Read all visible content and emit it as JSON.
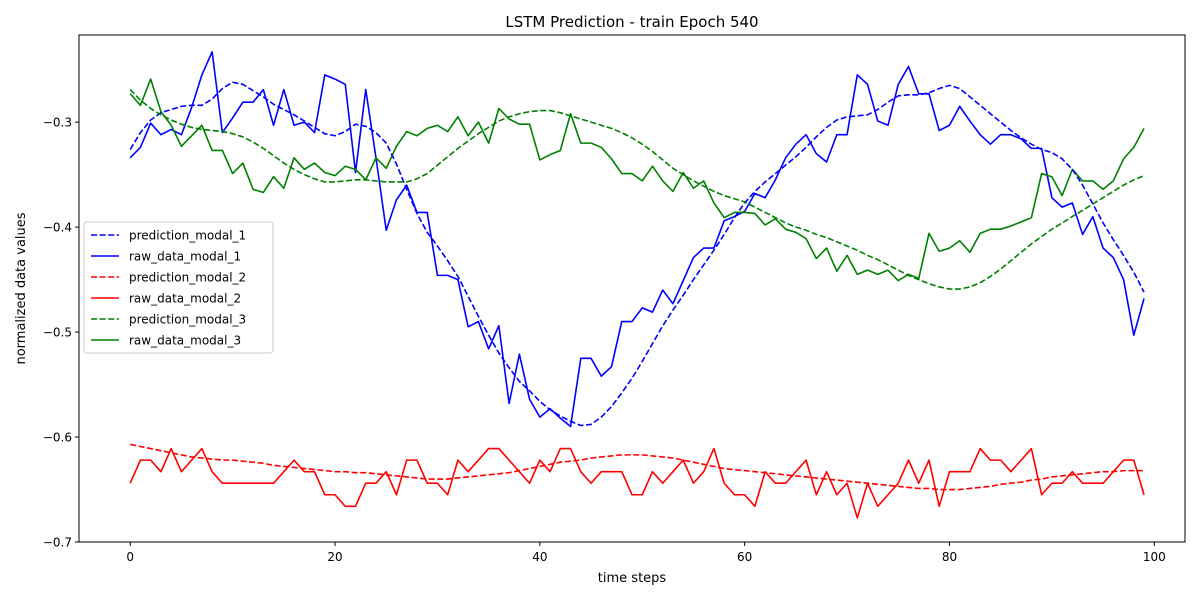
{
  "chart_data": {
    "type": "line",
    "title": "LSTM Prediction - train Epoch 540",
    "xlabel": "time steps",
    "ylabel": "normalized data values",
    "xlim": [
      -5,
      103
    ],
    "ylim": [
      -0.7,
      -0.217
    ],
    "xticks": [
      0,
      20,
      40,
      60,
      80,
      100
    ],
    "yticks": [
      -0.7,
      -0.6,
      -0.5,
      -0.4,
      -0.3
    ],
    "xtick_labels": [
      "0",
      "20",
      "40",
      "60",
      "80",
      "100"
    ],
    "ytick_labels": [
      "−0.7",
      "−0.6",
      "−0.5",
      "−0.4",
      "−0.3"
    ],
    "grid": false,
    "legend_position": "center-left",
    "series": [
      {
        "name": "prediction_modal_1",
        "color": "#0000ff",
        "dashed": true,
        "values": [
          -0.326,
          -0.31,
          -0.298,
          -0.291,
          -0.288,
          -0.285,
          -0.284,
          -0.284,
          -0.278,
          -0.268,
          -0.262,
          -0.264,
          -0.27,
          -0.276,
          -0.283,
          -0.288,
          -0.293,
          -0.299,
          -0.305,
          -0.311,
          -0.313,
          -0.309,
          -0.302,
          -0.304,
          -0.31,
          -0.32,
          -0.34,
          -0.364,
          -0.387,
          -0.405,
          -0.418,
          -0.432,
          -0.447,
          -0.466,
          -0.485,
          -0.503,
          -0.52,
          -0.534,
          -0.547,
          -0.556,
          -0.566,
          -0.574,
          -0.58,
          -0.585,
          -0.589,
          -0.588,
          -0.581,
          -0.571,
          -0.558,
          -0.544,
          -0.528,
          -0.511,
          -0.494,
          -0.479,
          -0.465,
          -0.45,
          -0.436,
          -0.422,
          -0.407,
          -0.391,
          -0.377,
          -0.366,
          -0.357,
          -0.349,
          -0.341,
          -0.333,
          -0.324,
          -0.314,
          -0.305,
          -0.298,
          -0.295,
          -0.294,
          -0.293,
          -0.288,
          -0.281,
          -0.275,
          -0.274,
          -0.274,
          -0.272,
          -0.268,
          -0.265,
          -0.268,
          -0.276,
          -0.284,
          -0.292,
          -0.3,
          -0.308,
          -0.315,
          -0.321,
          -0.326,
          -0.329,
          -0.335,
          -0.345,
          -0.36,
          -0.378,
          -0.396,
          -0.412,
          -0.427,
          -0.443,
          -0.462
        ]
      },
      {
        "name": "raw_data_modal_1",
        "color": "#0000ff",
        "dashed": false,
        "values": [
          -0.334,
          -0.324,
          -0.301,
          -0.312,
          -0.307,
          -0.312,
          -0.286,
          -0.255,
          -0.233,
          -0.31,
          -0.296,
          -0.281,
          -0.281,
          -0.269,
          -0.303,
          -0.269,
          -0.303,
          -0.3,
          -0.31,
          -0.255,
          -0.259,
          -0.264,
          -0.348,
          -0.269,
          -0.334,
          -0.403,
          -0.374,
          -0.36,
          -0.386,
          -0.386,
          -0.446,
          -0.446,
          -0.45,
          -0.495,
          -0.49,
          -0.516,
          -0.494,
          -0.568,
          -0.521,
          -0.564,
          -0.581,
          -0.573,
          -0.582,
          -0.59,
          -0.525,
          -0.525,
          -0.542,
          -0.533,
          -0.49,
          -0.49,
          -0.477,
          -0.481,
          -0.46,
          -0.473,
          -0.451,
          -0.429,
          -0.42,
          -0.42,
          -0.394,
          -0.39,
          -0.385,
          -0.368,
          -0.372,
          -0.355,
          -0.334,
          -0.321,
          -0.312,
          -0.33,
          -0.338,
          -0.312,
          -0.312,
          -0.255,
          -0.264,
          -0.299,
          -0.303,
          -0.264,
          -0.247,
          -0.273,
          -0.273,
          -0.308,
          -0.303,
          -0.285,
          -0.299,
          -0.312,
          -0.321,
          -0.312,
          -0.312,
          -0.316,
          -0.325,
          -0.325,
          -0.372,
          -0.381,
          -0.377,
          -0.407,
          -0.39,
          -0.42,
          -0.429,
          -0.45,
          -0.503,
          -0.468
        ]
      },
      {
        "name": "prediction_modal_2",
        "color": "#ff0000",
        "dashed": true,
        "values": [
          -0.607,
          -0.609,
          -0.611,
          -0.613,
          -0.615,
          -0.617,
          -0.619,
          -0.62,
          -0.621,
          -0.622,
          -0.622,
          -0.623,
          -0.624,
          -0.625,
          -0.627,
          -0.628,
          -0.629,
          -0.63,
          -0.631,
          -0.632,
          -0.633,
          -0.633,
          -0.634,
          -0.634,
          -0.635,
          -0.636,
          -0.637,
          -0.638,
          -0.639,
          -0.64,
          -0.64,
          -0.64,
          -0.639,
          -0.638,
          -0.637,
          -0.636,
          -0.635,
          -0.634,
          -0.632,
          -0.63,
          -0.628,
          -0.626,
          -0.624,
          -0.623,
          -0.622,
          -0.62,
          -0.619,
          -0.618,
          -0.617,
          -0.617,
          -0.617,
          -0.618,
          -0.619,
          -0.62,
          -0.622,
          -0.624,
          -0.626,
          -0.628,
          -0.63,
          -0.631,
          -0.632,
          -0.633,
          -0.634,
          -0.635,
          -0.636,
          -0.637,
          -0.638,
          -0.639,
          -0.64,
          -0.641,
          -0.642,
          -0.643,
          -0.644,
          -0.645,
          -0.646,
          -0.647,
          -0.648,
          -0.649,
          -0.649,
          -0.65,
          -0.65,
          -0.65,
          -0.649,
          -0.648,
          -0.647,
          -0.645,
          -0.644,
          -0.643,
          -0.641,
          -0.64,
          -0.638,
          -0.637,
          -0.636,
          -0.635,
          -0.634,
          -0.633,
          -0.633,
          -0.632,
          -0.632,
          -0.632
        ]
      },
      {
        "name": "raw_data_modal_2",
        "color": "#ff0000",
        "dashed": false,
        "values": [
          -0.644,
          -0.622,
          -0.622,
          -0.633,
          -0.611,
          -0.633,
          -0.622,
          -0.611,
          -0.633,
          -0.644,
          -0.644,
          -0.644,
          -0.644,
          -0.644,
          -0.644,
          -0.633,
          -0.622,
          -0.633,
          -0.633,
          -0.655,
          -0.655,
          -0.666,
          -0.666,
          -0.644,
          -0.644,
          -0.633,
          -0.655,
          -0.622,
          -0.622,
          -0.644,
          -0.644,
          -0.655,
          -0.622,
          -0.633,
          -0.622,
          -0.611,
          -0.611,
          -0.622,
          -0.633,
          -0.644,
          -0.622,
          -0.633,
          -0.611,
          -0.611,
          -0.633,
          -0.644,
          -0.633,
          -0.633,
          -0.633,
          -0.655,
          -0.655,
          -0.633,
          -0.644,
          -0.633,
          -0.622,
          -0.644,
          -0.633,
          -0.611,
          -0.644,
          -0.655,
          -0.655,
          -0.666,
          -0.633,
          -0.644,
          -0.644,
          -0.633,
          -0.622,
          -0.655,
          -0.633,
          -0.655,
          -0.644,
          -0.677,
          -0.644,
          -0.666,
          -0.655,
          -0.644,
          -0.622,
          -0.644,
          -0.622,
          -0.666,
          -0.633,
          -0.633,
          -0.633,
          -0.611,
          -0.622,
          -0.622,
          -0.633,
          -0.622,
          -0.611,
          -0.655,
          -0.644,
          -0.644,
          -0.633,
          -0.644,
          -0.644,
          -0.644,
          -0.633,
          -0.622,
          -0.622,
          -0.655
        ]
      },
      {
        "name": "prediction_modal_3",
        "color": "#008000",
        "dashed": true,
        "values": [
          -0.269,
          -0.279,
          -0.287,
          -0.293,
          -0.298,
          -0.302,
          -0.305,
          -0.307,
          -0.308,
          -0.309,
          -0.311,
          -0.314,
          -0.319,
          -0.325,
          -0.332,
          -0.339,
          -0.345,
          -0.35,
          -0.354,
          -0.357,
          -0.357,
          -0.356,
          -0.355,
          -0.355,
          -0.356,
          -0.357,
          -0.357,
          -0.357,
          -0.354,
          -0.349,
          -0.341,
          -0.333,
          -0.325,
          -0.318,
          -0.311,
          -0.305,
          -0.299,
          -0.295,
          -0.292,
          -0.29,
          -0.289,
          -0.289,
          -0.291,
          -0.294,
          -0.297,
          -0.3,
          -0.303,
          -0.306,
          -0.31,
          -0.315,
          -0.321,
          -0.328,
          -0.336,
          -0.344,
          -0.35,
          -0.356,
          -0.361,
          -0.366,
          -0.37,
          -0.373,
          -0.376,
          -0.381,
          -0.386,
          -0.391,
          -0.396,
          -0.4,
          -0.403,
          -0.407,
          -0.41,
          -0.414,
          -0.418,
          -0.422,
          -0.427,
          -0.431,
          -0.436,
          -0.441,
          -0.446,
          -0.45,
          -0.454,
          -0.457,
          -0.459,
          -0.459,
          -0.457,
          -0.453,
          -0.447,
          -0.44,
          -0.432,
          -0.424,
          -0.416,
          -0.409,
          -0.402,
          -0.396,
          -0.39,
          -0.384,
          -0.378,
          -0.372,
          -0.366,
          -0.36,
          -0.355,
          -0.351
        ]
      },
      {
        "name": "raw_data_modal_3",
        "color": "#008000",
        "dashed": false,
        "values": [
          -0.273,
          -0.284,
          -0.259,
          -0.29,
          -0.303,
          -0.323,
          -0.313,
          -0.303,
          -0.327,
          -0.327,
          -0.349,
          -0.339,
          -0.364,
          -0.367,
          -0.352,
          -0.363,
          -0.334,
          -0.345,
          -0.339,
          -0.348,
          -0.351,
          -0.342,
          -0.345,
          -0.355,
          -0.334,
          -0.344,
          -0.323,
          -0.309,
          -0.313,
          -0.306,
          -0.303,
          -0.309,
          -0.295,
          -0.313,
          -0.3,
          -0.32,
          -0.287,
          -0.297,
          -0.302,
          -0.302,
          -0.336,
          -0.331,
          -0.327,
          -0.292,
          -0.32,
          -0.32,
          -0.324,
          -0.335,
          -0.349,
          -0.349,
          -0.356,
          -0.342,
          -0.356,
          -0.366,
          -0.348,
          -0.363,
          -0.356,
          -0.377,
          -0.391,
          -0.386,
          -0.386,
          -0.387,
          -0.398,
          -0.392,
          -0.402,
          -0.405,
          -0.411,
          -0.43,
          -0.42,
          -0.442,
          -0.427,
          -0.445,
          -0.441,
          -0.445,
          -0.441,
          -0.451,
          -0.445,
          -0.449,
          -0.406,
          -0.423,
          -0.42,
          -0.413,
          -0.424,
          -0.406,
          -0.402,
          -0.402,
          -0.399,
          -0.395,
          -0.391,
          -0.349,
          -0.352,
          -0.37,
          -0.345,
          -0.356,
          -0.356,
          -0.364,
          -0.356,
          -0.335,
          -0.324,
          -0.306
        ]
      }
    ]
  }
}
